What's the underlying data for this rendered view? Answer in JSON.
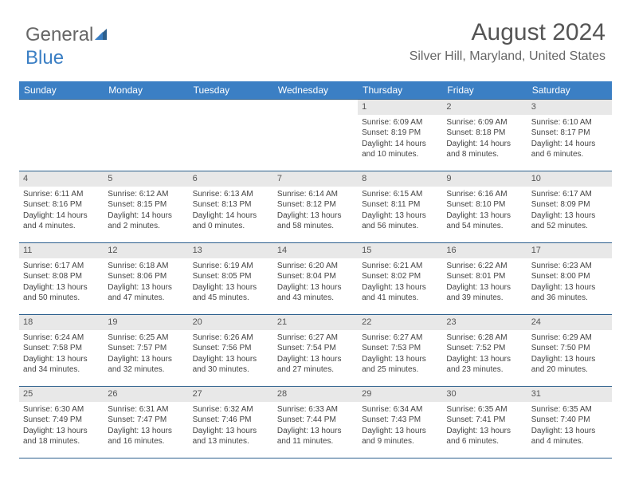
{
  "logo": {
    "text1": "General",
    "text2": "Blue"
  },
  "title": "August 2024",
  "location": "Silver Hill, Maryland, United States",
  "colors": {
    "header_bg": "#3b7fc4",
    "header_text": "#ffffff",
    "border": "#2c5f8d",
    "daynum_bg": "#e8e8e8",
    "text": "#444444"
  },
  "weekdays": [
    "Sunday",
    "Monday",
    "Tuesday",
    "Wednesday",
    "Thursday",
    "Friday",
    "Saturday"
  ],
  "weeks": [
    [
      null,
      null,
      null,
      null,
      {
        "n": "1",
        "sr": "Sunrise: 6:09 AM",
        "ss": "Sunset: 8:19 PM",
        "d1": "Daylight: 14 hours",
        "d2": "and 10 minutes."
      },
      {
        "n": "2",
        "sr": "Sunrise: 6:09 AM",
        "ss": "Sunset: 8:18 PM",
        "d1": "Daylight: 14 hours",
        "d2": "and 8 minutes."
      },
      {
        "n": "3",
        "sr": "Sunrise: 6:10 AM",
        "ss": "Sunset: 8:17 PM",
        "d1": "Daylight: 14 hours",
        "d2": "and 6 minutes."
      }
    ],
    [
      {
        "n": "4",
        "sr": "Sunrise: 6:11 AM",
        "ss": "Sunset: 8:16 PM",
        "d1": "Daylight: 14 hours",
        "d2": "and 4 minutes."
      },
      {
        "n": "5",
        "sr": "Sunrise: 6:12 AM",
        "ss": "Sunset: 8:15 PM",
        "d1": "Daylight: 14 hours",
        "d2": "and 2 minutes."
      },
      {
        "n": "6",
        "sr": "Sunrise: 6:13 AM",
        "ss": "Sunset: 8:13 PM",
        "d1": "Daylight: 14 hours",
        "d2": "and 0 minutes."
      },
      {
        "n": "7",
        "sr": "Sunrise: 6:14 AM",
        "ss": "Sunset: 8:12 PM",
        "d1": "Daylight: 13 hours",
        "d2": "and 58 minutes."
      },
      {
        "n": "8",
        "sr": "Sunrise: 6:15 AM",
        "ss": "Sunset: 8:11 PM",
        "d1": "Daylight: 13 hours",
        "d2": "and 56 minutes."
      },
      {
        "n": "9",
        "sr": "Sunrise: 6:16 AM",
        "ss": "Sunset: 8:10 PM",
        "d1": "Daylight: 13 hours",
        "d2": "and 54 minutes."
      },
      {
        "n": "10",
        "sr": "Sunrise: 6:17 AM",
        "ss": "Sunset: 8:09 PM",
        "d1": "Daylight: 13 hours",
        "d2": "and 52 minutes."
      }
    ],
    [
      {
        "n": "11",
        "sr": "Sunrise: 6:17 AM",
        "ss": "Sunset: 8:08 PM",
        "d1": "Daylight: 13 hours",
        "d2": "and 50 minutes."
      },
      {
        "n": "12",
        "sr": "Sunrise: 6:18 AM",
        "ss": "Sunset: 8:06 PM",
        "d1": "Daylight: 13 hours",
        "d2": "and 47 minutes."
      },
      {
        "n": "13",
        "sr": "Sunrise: 6:19 AM",
        "ss": "Sunset: 8:05 PM",
        "d1": "Daylight: 13 hours",
        "d2": "and 45 minutes."
      },
      {
        "n": "14",
        "sr": "Sunrise: 6:20 AM",
        "ss": "Sunset: 8:04 PM",
        "d1": "Daylight: 13 hours",
        "d2": "and 43 minutes."
      },
      {
        "n": "15",
        "sr": "Sunrise: 6:21 AM",
        "ss": "Sunset: 8:02 PM",
        "d1": "Daylight: 13 hours",
        "d2": "and 41 minutes."
      },
      {
        "n": "16",
        "sr": "Sunrise: 6:22 AM",
        "ss": "Sunset: 8:01 PM",
        "d1": "Daylight: 13 hours",
        "d2": "and 39 minutes."
      },
      {
        "n": "17",
        "sr": "Sunrise: 6:23 AM",
        "ss": "Sunset: 8:00 PM",
        "d1": "Daylight: 13 hours",
        "d2": "and 36 minutes."
      }
    ],
    [
      {
        "n": "18",
        "sr": "Sunrise: 6:24 AM",
        "ss": "Sunset: 7:58 PM",
        "d1": "Daylight: 13 hours",
        "d2": "and 34 minutes."
      },
      {
        "n": "19",
        "sr": "Sunrise: 6:25 AM",
        "ss": "Sunset: 7:57 PM",
        "d1": "Daylight: 13 hours",
        "d2": "and 32 minutes."
      },
      {
        "n": "20",
        "sr": "Sunrise: 6:26 AM",
        "ss": "Sunset: 7:56 PM",
        "d1": "Daylight: 13 hours",
        "d2": "and 30 minutes."
      },
      {
        "n": "21",
        "sr": "Sunrise: 6:27 AM",
        "ss": "Sunset: 7:54 PM",
        "d1": "Daylight: 13 hours",
        "d2": "and 27 minutes."
      },
      {
        "n": "22",
        "sr": "Sunrise: 6:27 AM",
        "ss": "Sunset: 7:53 PM",
        "d1": "Daylight: 13 hours",
        "d2": "and 25 minutes."
      },
      {
        "n": "23",
        "sr": "Sunrise: 6:28 AM",
        "ss": "Sunset: 7:52 PM",
        "d1": "Daylight: 13 hours",
        "d2": "and 23 minutes."
      },
      {
        "n": "24",
        "sr": "Sunrise: 6:29 AM",
        "ss": "Sunset: 7:50 PM",
        "d1": "Daylight: 13 hours",
        "d2": "and 20 minutes."
      }
    ],
    [
      {
        "n": "25",
        "sr": "Sunrise: 6:30 AM",
        "ss": "Sunset: 7:49 PM",
        "d1": "Daylight: 13 hours",
        "d2": "and 18 minutes."
      },
      {
        "n": "26",
        "sr": "Sunrise: 6:31 AM",
        "ss": "Sunset: 7:47 PM",
        "d1": "Daylight: 13 hours",
        "d2": "and 16 minutes."
      },
      {
        "n": "27",
        "sr": "Sunrise: 6:32 AM",
        "ss": "Sunset: 7:46 PM",
        "d1": "Daylight: 13 hours",
        "d2": "and 13 minutes."
      },
      {
        "n": "28",
        "sr": "Sunrise: 6:33 AM",
        "ss": "Sunset: 7:44 PM",
        "d1": "Daylight: 13 hours",
        "d2": "and 11 minutes."
      },
      {
        "n": "29",
        "sr": "Sunrise: 6:34 AM",
        "ss": "Sunset: 7:43 PM",
        "d1": "Daylight: 13 hours",
        "d2": "and 9 minutes."
      },
      {
        "n": "30",
        "sr": "Sunrise: 6:35 AM",
        "ss": "Sunset: 7:41 PM",
        "d1": "Daylight: 13 hours",
        "d2": "and 6 minutes."
      },
      {
        "n": "31",
        "sr": "Sunrise: 6:35 AM",
        "ss": "Sunset: 7:40 PM",
        "d1": "Daylight: 13 hours",
        "d2": "and 4 minutes."
      }
    ]
  ]
}
